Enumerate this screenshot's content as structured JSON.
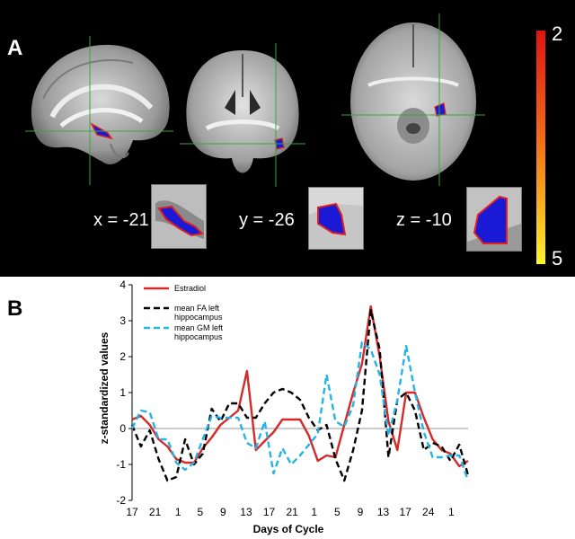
{
  "panel_a": {
    "letter": "A",
    "coords": {
      "x": "x = -21",
      "y": "y = -26",
      "z": "z = -10"
    },
    "colorbar": {
      "top_label": "2",
      "bottom_label": "5",
      "colors": [
        "#e01414",
        "#f26a16",
        "#f5b01f",
        "#fff42a"
      ]
    }
  },
  "panel_b": {
    "letter": "B"
  },
  "chart_data": {
    "type": "line",
    "title": "",
    "xlabel": "Days of Cycle",
    "ylabel": "z-standardized values",
    "ylim": [
      -2,
      4
    ],
    "xlim": [
      0,
      38
    ],
    "y_ticks": [
      "-2",
      "-1",
      "0",
      "1",
      "2",
      "3",
      "4"
    ],
    "x_tick_labels": [
      "17",
      "21",
      "1",
      "5",
      "9",
      "13",
      "17",
      "21",
      "1",
      "5",
      "9",
      "13",
      "17",
      "24",
      "1"
    ],
    "x_tick_positions": [
      0,
      2.6,
      5.2,
      7.7,
      10.3,
      12.9,
      15.5,
      18.1,
      20.6,
      23.2,
      25.8,
      28.4,
      30.9,
      33.5,
      36.1
    ],
    "legend_position": "top-left",
    "series": [
      {
        "name": "Estradiol",
        "color": "#d42a2a",
        "dash": "solid",
        "points": [
          [
            0,
            0.25
          ],
          [
            1,
            0.35
          ],
          [
            2,
            0.1
          ],
          [
            3,
            -0.3
          ],
          [
            4,
            -0.5
          ],
          [
            5,
            -0.85
          ],
          [
            6,
            -0.95
          ],
          [
            7,
            -0.95
          ],
          [
            8,
            -0.55
          ],
          [
            9,
            -0.25
          ],
          [
            10,
            0.1
          ],
          [
            11,
            0.3
          ],
          [
            12,
            0.5
          ],
          [
            13,
            1.6
          ],
          [
            14,
            -0.6
          ],
          [
            15,
            -0.35
          ],
          [
            16,
            -0.1
          ],
          [
            17,
            0.25
          ],
          [
            18,
            0.25
          ],
          [
            19,
            0.25
          ],
          [
            20,
            -0.2
          ],
          [
            21,
            -0.9
          ],
          [
            22,
            -0.75
          ],
          [
            23,
            -0.8
          ],
          [
            24,
            0.1
          ],
          [
            25,
            1.0
          ],
          [
            26,
            1.8
          ],
          [
            27,
            3.4
          ],
          [
            28,
            2.0
          ],
          [
            29,
            0.2
          ],
          [
            30,
            -0.6
          ],
          [
            31,
            1.0
          ],
          [
            32,
            1.0
          ],
          [
            33,
            0.3
          ],
          [
            34,
            -0.3
          ],
          [
            35,
            -0.6
          ],
          [
            36,
            -0.7
          ],
          [
            37,
            -1.05
          ],
          [
            38,
            -0.9
          ]
        ]
      },
      {
        "name": "mean FA left hippocampus",
        "color": "#000000",
        "dash": "dashed",
        "points": [
          [
            0,
            0.1
          ],
          [
            1,
            -0.5
          ],
          [
            2,
            -0.05
          ],
          [
            3,
            -0.85
          ],
          [
            4,
            -1.45
          ],
          [
            5,
            -1.35
          ],
          [
            6,
            -0.3
          ],
          [
            7,
            -1.0
          ],
          [
            8,
            -0.7
          ],
          [
            9,
            0.55
          ],
          [
            10,
            0.2
          ],
          [
            11,
            0.7
          ],
          [
            12,
            0.7
          ],
          [
            13,
            0.3
          ],
          [
            14,
            0.3
          ],
          [
            15,
            0.7
          ],
          [
            16,
            1.0
          ],
          [
            17,
            1.1
          ],
          [
            18,
            1.0
          ],
          [
            19,
            0.8
          ],
          [
            20,
            0.3
          ],
          [
            21,
            -0.05
          ],
          [
            22,
            0.1
          ],
          [
            23,
            -0.85
          ],
          [
            24,
            -1.45
          ],
          [
            25,
            -0.6
          ],
          [
            26,
            0.5
          ],
          [
            27,
            3.3
          ],
          [
            28,
            2.2
          ],
          [
            29,
            -0.8
          ],
          [
            30,
            0.8
          ],
          [
            31,
            1.0
          ],
          [
            32,
            0.5
          ],
          [
            33,
            -0.6
          ],
          [
            34,
            -0.4
          ],
          [
            35,
            -0.5
          ],
          [
            36,
            -0.9
          ],
          [
            37,
            -0.45
          ],
          [
            38,
            -1.3
          ]
        ]
      },
      {
        "name": "mean GM left hippocampus",
        "color": "#23b4e6",
        "dash": "dashed",
        "points": [
          [
            0,
            0.0
          ],
          [
            1,
            0.5
          ],
          [
            2,
            0.45
          ],
          [
            3,
            -0.3
          ],
          [
            4,
            -0.3
          ],
          [
            5,
            -0.95
          ],
          [
            6,
            -1.15
          ],
          [
            7,
            -0.95
          ],
          [
            8,
            -0.3
          ],
          [
            9,
            0.35
          ],
          [
            10,
            0.3
          ],
          [
            11,
            0.3
          ],
          [
            12,
            0.3
          ],
          [
            13,
            -0.4
          ],
          [
            14,
            -0.55
          ],
          [
            15,
            0.2
          ],
          [
            16,
            -1.25
          ],
          [
            17,
            -0.55
          ],
          [
            18,
            -1.0
          ],
          [
            19,
            -0.75
          ],
          [
            20,
            -0.45
          ],
          [
            21,
            -0.15
          ],
          [
            22,
            1.5
          ],
          [
            23,
            0.2
          ],
          [
            24,
            0.05
          ],
          [
            25,
            0.65
          ],
          [
            26,
            2.4
          ],
          [
            27,
            2.2
          ],
          [
            28,
            1.5
          ],
          [
            29,
            -0.2
          ],
          [
            30,
            0.8
          ],
          [
            31,
            2.3
          ],
          [
            32,
            1.0
          ],
          [
            33,
            -0.1
          ],
          [
            34,
            -0.8
          ],
          [
            35,
            -0.8
          ],
          [
            36,
            -0.75
          ],
          [
            37,
            -0.75
          ],
          [
            38,
            -1.45
          ]
        ]
      }
    ]
  }
}
